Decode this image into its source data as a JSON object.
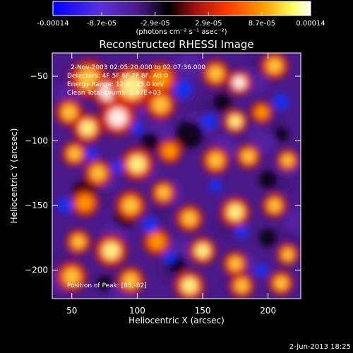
{
  "chart_data": {
    "type": "heatmap",
    "title": "Reconstructed RHESSI Image",
    "xlabel": "Heliocentric X (arcsec)",
    "ylabel": "Heliocentric Y (arcsec)",
    "xlim": [
      35,
      225
    ],
    "ylim": [
      -222,
      -32
    ],
    "x_ticks": [
      50,
      100,
      150,
      200
    ],
    "y_ticks": [
      -50,
      -100,
      -150,
      -200
    ],
    "colorbar": {
      "range": [
        -0.00014,
        0.00014
      ],
      "tick_values": [
        -0.00014,
        -8.7e-05,
        -2.9e-05,
        2.9e-05,
        8.7e-05,
        0.00014
      ],
      "tick_labels": [
        "-0.00014",
        "-8.7e-05",
        "-2.9e-05",
        "2.9e-05",
        "8.7e-05",
        "0.00014"
      ],
      "unit_label": "(photons cm⁻² s⁻¹ asec⁻²)"
    },
    "annotations": [
      "2-Nov-2003 02:05:20.000 to 02:07:36.000",
      "Detectors: 4F 5F 6F 7F 8F, Att 0",
      "Energy Range: 12.0 - 25.0 keV",
      "Clean     Total counts: 1.47E+03"
    ],
    "position_note": "Position of Peak: [85,-82]",
    "peak": [
      85,
      -82
    ],
    "grid": false,
    "colormap": [
      "#0000ff",
      "#6a2fd8",
      "#4a1a8a",
      "#000000",
      "#c01010",
      "#ff4a00",
      "#ffb000",
      "#ffff80",
      "#ffffff"
    ]
  },
  "footer": {
    "date": "2-Jun-2013 18:25"
  }
}
